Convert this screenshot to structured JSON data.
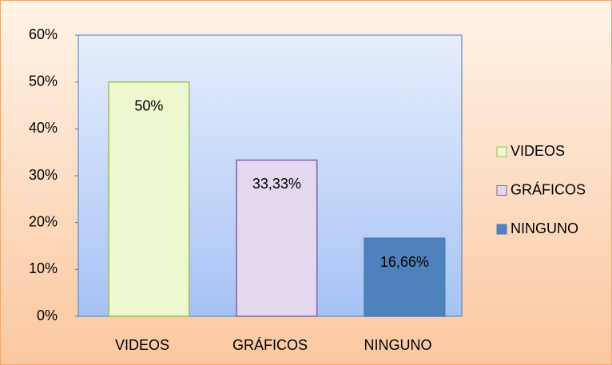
{
  "chart_data": {
    "type": "bar",
    "categories": [
      "VIDEOS",
      "GRÁFICOS",
      "NINGUNO"
    ],
    "values": [
      50,
      33.33,
      16.66
    ],
    "value_labels": [
      "50%",
      "33,33%",
      "16,66%"
    ],
    "colors": [
      "#eef8cf",
      "#e3d8ee",
      "#4f81bd"
    ],
    "ylim": [
      0,
      60
    ],
    "yticks": [
      {
        "value": 0,
        "label": "0%"
      },
      {
        "value": 10,
        "label": "10%"
      },
      {
        "value": 20,
        "label": "20%"
      },
      {
        "value": 30,
        "label": "30%"
      },
      {
        "value": 40,
        "label": "40%"
      },
      {
        "value": 50,
        "label": "50%"
      },
      {
        "value": 60,
        "label": "60%"
      }
    ],
    "legend": "right"
  }
}
